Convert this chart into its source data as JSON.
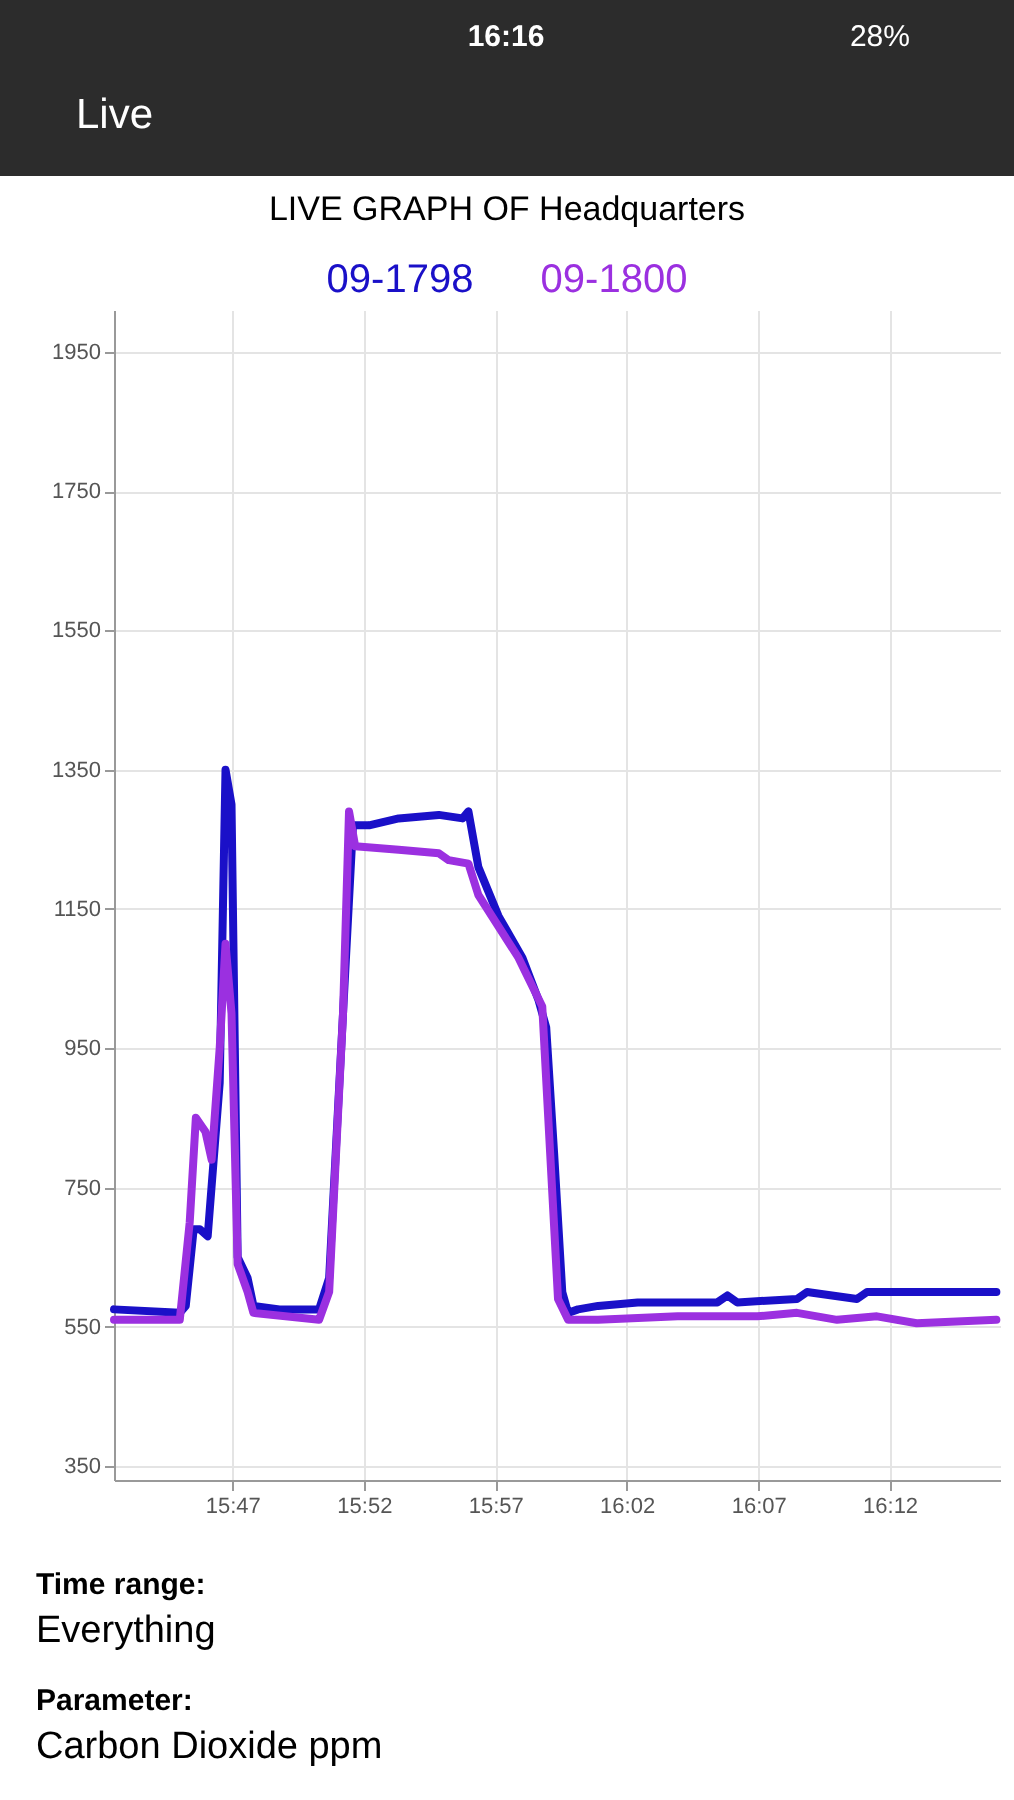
{
  "chart_data": {
    "type": "line",
    "title": "LIVE GRAPH OF Headquarters",
    "series": [
      {
        "name": "09-1798",
        "color": "#1a10c8",
        "x": [
          15.7083,
          15.75,
          15.7538,
          15.7588,
          15.7627,
          15.7677,
          15.7753,
          15.779,
          15.7828,
          15.7867,
          15.793,
          15.7967,
          15.8132,
          15.8383,
          15.8447,
          15.8535,
          15.8598,
          15.87,
          15.8888,
          15.9142,
          15.9293,
          15.933,
          15.9393,
          15.952,
          15.9672,
          15.9773,
          15.9823,
          15.9873,
          15.9925,
          15.9962,
          16.0025,
          16.0152,
          16.0403,
          16.0908,
          16.0972,
          16.1035,
          16.1413,
          16.1477,
          16.1793,
          16.1857,
          16.2172,
          16.2677
        ],
        "values": [
          575,
          570,
          580,
          690,
          690,
          680,
          900,
          1350,
          1300,
          650,
          620,
          580,
          575,
          575,
          620,
          1000,
          1270,
          1270,
          1280,
          1285,
          1280,
          1290,
          1210,
          1140,
          1080,
          1020,
          980,
          800,
          600,
          570,
          575,
          580,
          585,
          585,
          595,
          585,
          590,
          600,
          590,
          600,
          600,
          600
        ]
      },
      {
        "name": "09-1800",
        "color": "#9b30e0",
        "x": [
          15.7083,
          15.75,
          15.7563,
          15.7602,
          15.7663,
          15.7702,
          15.7753,
          15.779,
          15.7828,
          15.7867,
          15.793,
          15.7967,
          15.8383,
          15.8447,
          15.8535,
          15.8573,
          15.8612,
          15.8888,
          15.9142,
          15.9205,
          15.933,
          15.9393,
          15.9647,
          15.9798,
          15.9848,
          15.9898,
          15.9962,
          16.0152,
          16.0657,
          16.1162,
          16.1413,
          16.1667,
          16.192,
          16.2172,
          16.2677
        ],
        "values": [
          560,
          560,
          700,
          850,
          830,
          790,
          950,
          1100,
          1000,
          640,
          600,
          570,
          560,
          600,
          1000,
          1290,
          1240,
          1235,
          1230,
          1220,
          1215,
          1170,
          1080,
          1010,
          800,
          590,
          560,
          560,
          565,
          565,
          570,
          560,
          565,
          555,
          560
        ]
      }
    ],
    "xlim": [
      15.7083,
      16.27
    ],
    "xticks": [
      {
        "value": 15.7833,
        "label": "15:47"
      },
      {
        "value": 15.8667,
        "label": "15:52"
      },
      {
        "value": 15.95,
        "label": "15:57"
      },
      {
        "value": 16.0333,
        "label": "16:02"
      },
      {
        "value": 16.1167,
        "label": "16:07"
      },
      {
        "value": 16.2,
        "label": "16:12"
      }
    ],
    "ylim": [
      330,
      2010
    ],
    "yticks": [
      350,
      550,
      750,
      950,
      {
        "value": 1150,
        "label": "1150"
      },
      {
        "value": 1350,
        "label": "1350"
      },
      {
        "value": 1550,
        "label": "1550"
      },
      {
        "value": 1750,
        "label": "1750"
      },
      {
        "value": 1950,
        "label": "1950"
      }
    ],
    "grid": true,
    "legend": "top",
    "line_style": "solid",
    "marker": "none",
    "annotations": [
      "16:16",
      "28%",
      "Live",
      "Time range:",
      "Everything",
      "Parameter:",
      "Carbon Dioxide ppm"
    ]
  }
}
